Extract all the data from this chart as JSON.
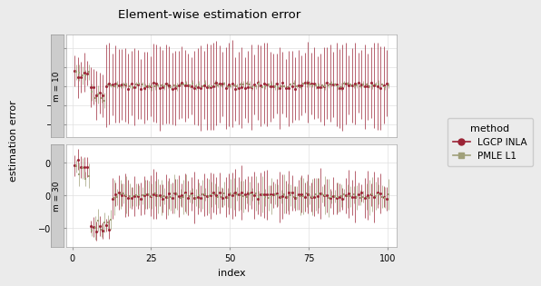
{
  "title": "Element-wise estimation error",
  "xlabel": "index",
  "ylabel": "estimation error",
  "n_points": 100,
  "panel1_label": "m = 10",
  "panel2_label": "m = 30",
  "lgcp_color": "#9B2335",
  "pmle_color": "#a0a07a",
  "legend_title": "method",
  "legend_entries": [
    "LGCP INLA",
    "PMLE L1"
  ],
  "panel1_ylim": [
    -2.7,
    2.7
  ],
  "panel2_ylim": [
    -0.47,
    0.47
  ],
  "panel1_yticks": [
    -2,
    -1,
    0,
    1,
    2
  ],
  "panel2_yticks": [
    -0.3,
    0.0,
    0.3
  ],
  "xticks": [
    0,
    25,
    50,
    75,
    100
  ],
  "seed": 42,
  "background_color": "#ebebeb",
  "panel_bg": "#ffffff",
  "strip_bg": "#cccccc"
}
